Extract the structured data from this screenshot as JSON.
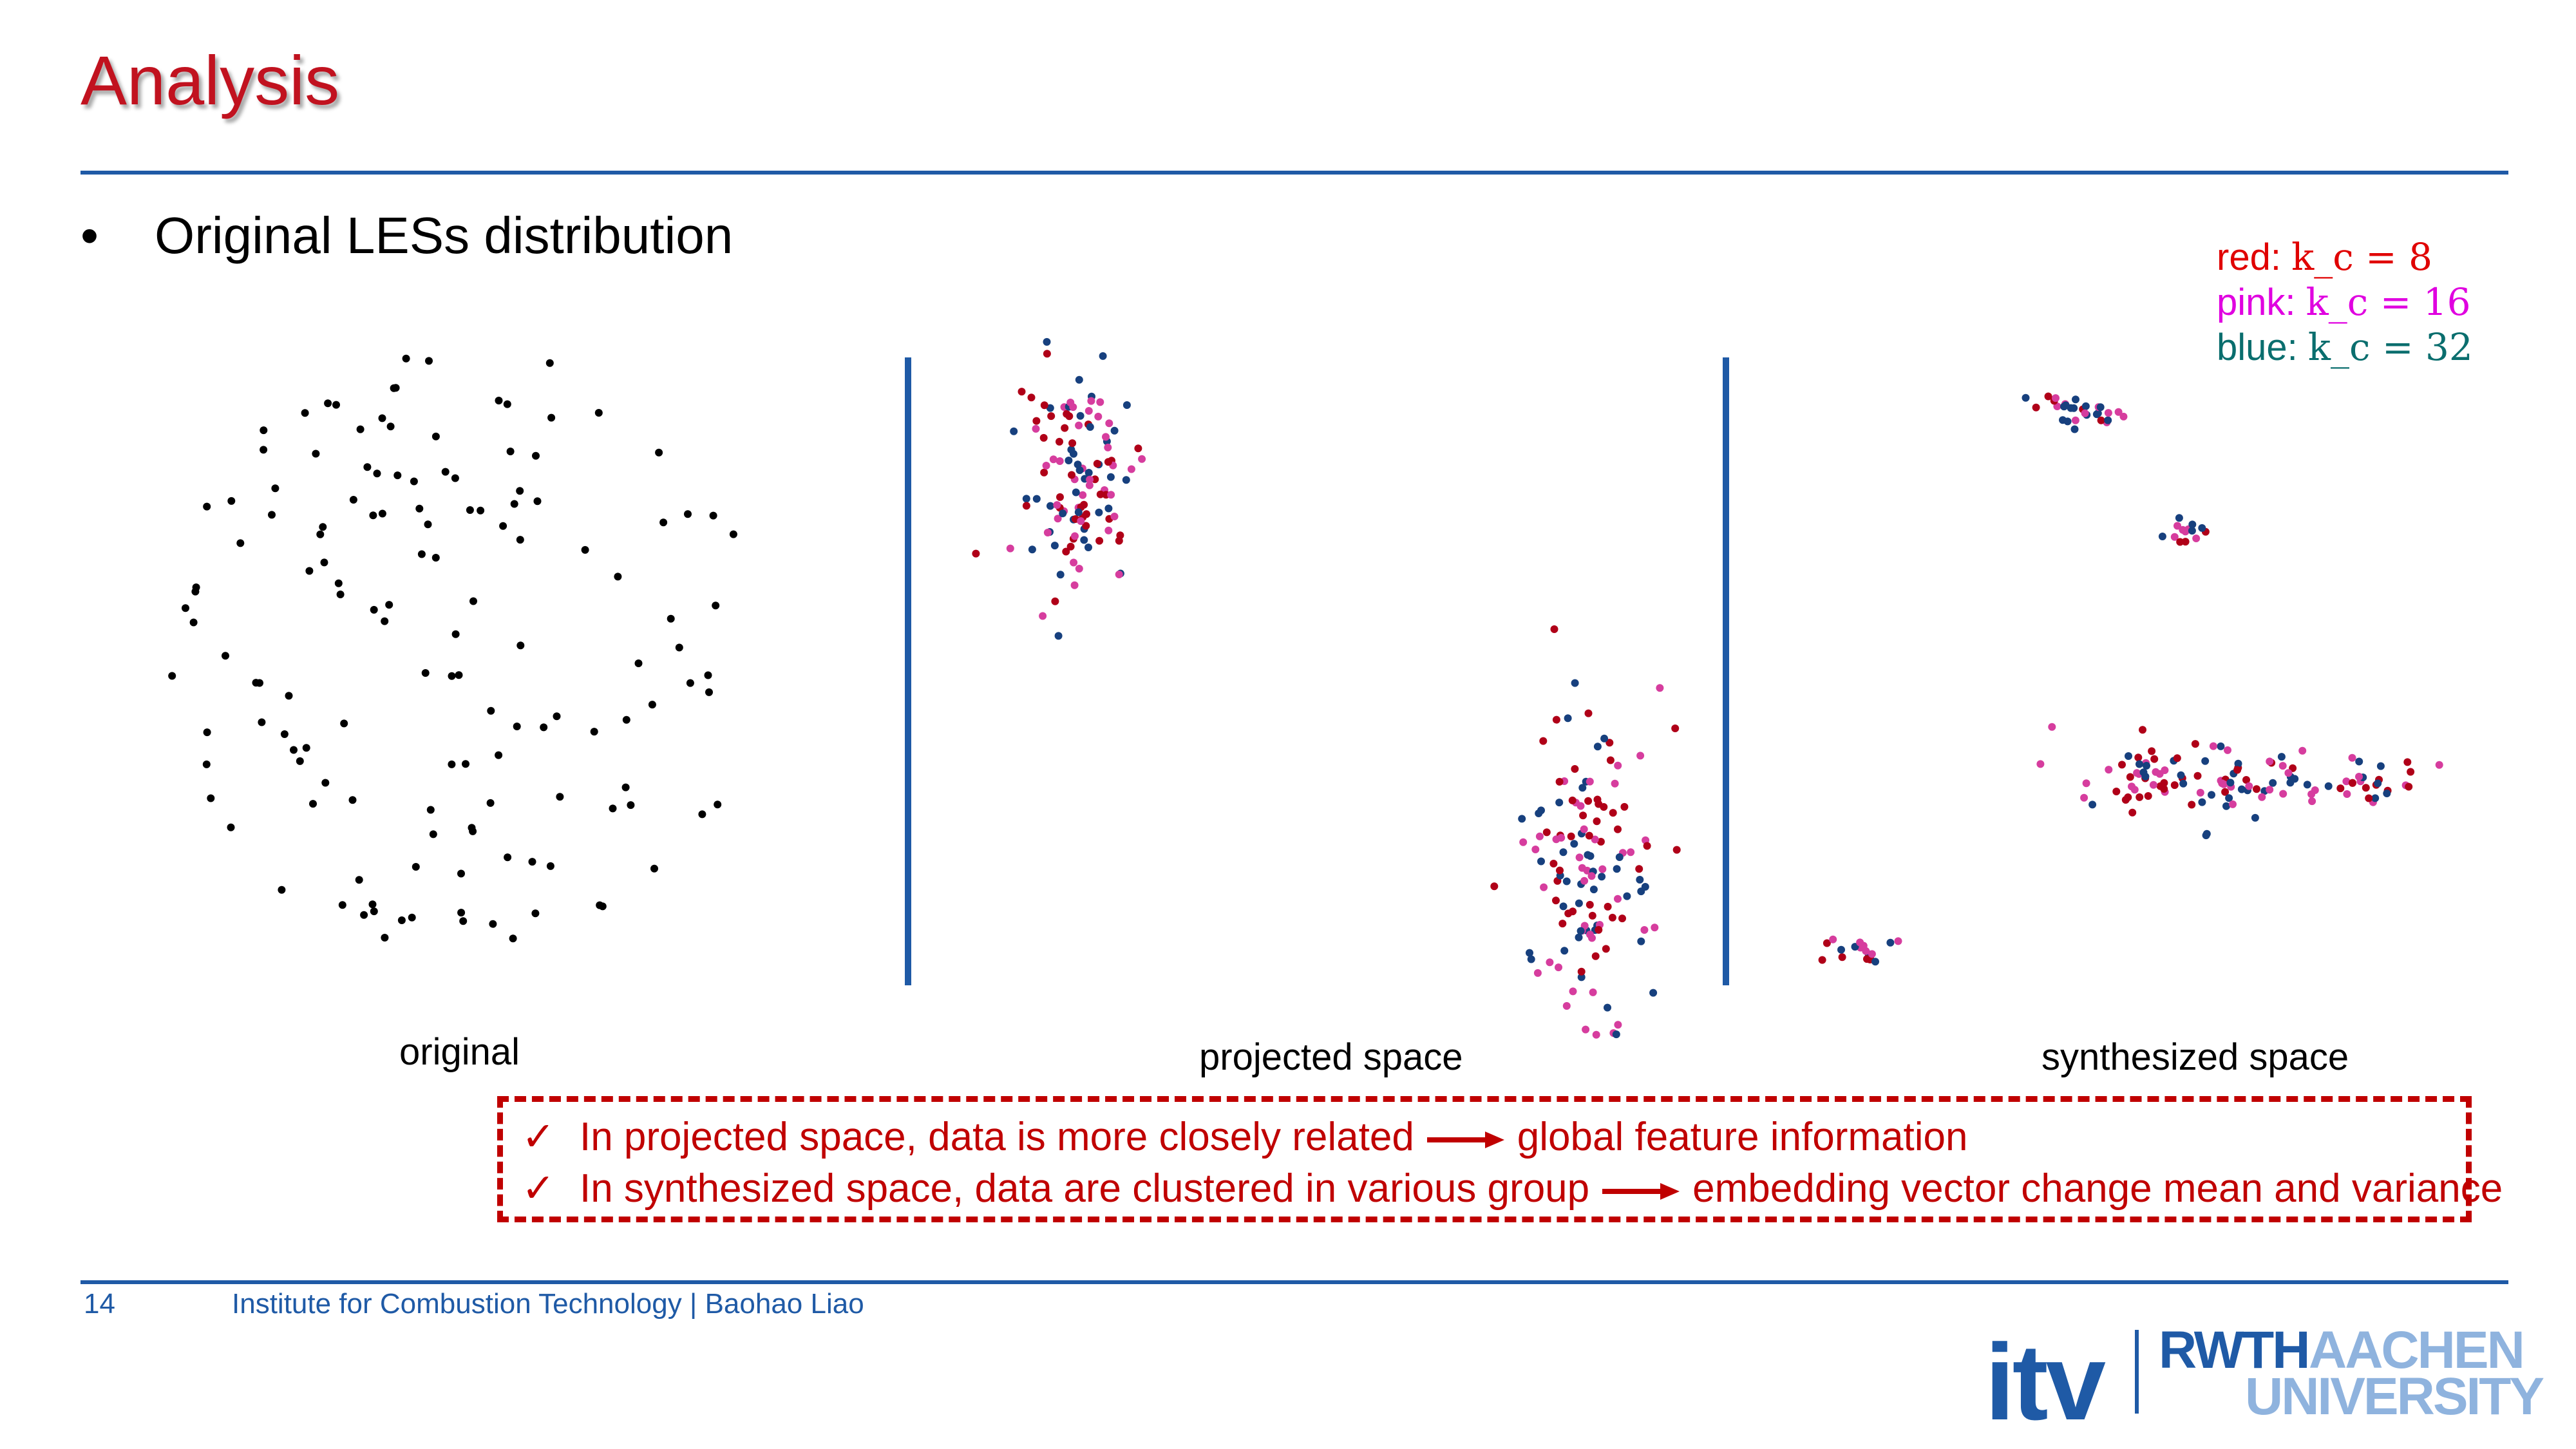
{
  "slide": {
    "title": "Analysis",
    "bullet_symbol": "•",
    "bullet_text": "Original LESs distribution"
  },
  "legend": [
    {
      "label": "red:",
      "math": "k_c = 8",
      "color": "#e00000"
    },
    {
      "label": "pink:",
      "math": "k_c = 16",
      "color": "#e000e0"
    },
    {
      "label": "blue:",
      "math": "k_c = 32",
      "color": "#0a6e6e"
    }
  ],
  "panels": [
    {
      "caption": "original"
    },
    {
      "caption": "projected space"
    },
    {
      "caption": "synthesized space"
    }
  ],
  "notes": {
    "check_symbol": "✓",
    "line1_left": "In projected space, data is more closely related",
    "line1_right": "global feature information",
    "line2_left": "In synthesized space, data are clustered in various group",
    "line2_right": "embedding vector change mean and variance"
  },
  "footer": {
    "page_number": "14",
    "text": "Institute for Combustion Technology | Baohao Liao"
  },
  "logo": {
    "itv": "itv",
    "rwth": "RWTH",
    "aachen": "AACHEN",
    "university": "UNIVERSITY"
  },
  "colors": {
    "title": "#c1121f",
    "rule": "#1f5aa6",
    "dot_original": "#000000",
    "dot_red": "#b00018",
    "dot_pink": "#d63d9e",
    "dot_blue": "#17407e",
    "note": "#c00000"
  }
}
